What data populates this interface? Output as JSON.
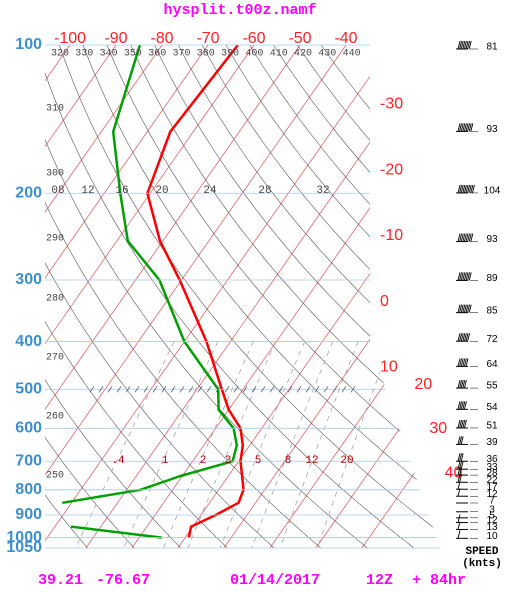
{
  "chart_data": {
    "type": "skewt",
    "title": "hysplit.t00z.namf",
    "footer": [
      "39.21",
      "-76.67",
      "01/14/2017",
      "12Z",
      "+ 84hr"
    ],
    "log_y": true,
    "ylim": [
      1050,
      100
    ],
    "yticks": [
      100,
      200,
      300,
      400,
      500,
      600,
      700,
      800,
      900,
      1000,
      1050
    ],
    "xlim": [
      -100,
      -40
    ],
    "xticks": [
      -100,
      -90,
      -80,
      -70,
      -60,
      -50,
      -40
    ],
    "isotherm_labels": [
      -30,
      -20,
      -10,
      0,
      10,
      20,
      30,
      40
    ],
    "theta_top": [
      320,
      330,
      340,
      350,
      360,
      370,
      380,
      390,
      400,
      410,
      420,
      430,
      440
    ],
    "theta_left": [
      310,
      300,
      290,
      280,
      270,
      260,
      250
    ],
    "mixing_ratio_upper": [
      {
        "value": 8,
        "label": "08"
      },
      12,
      16,
      20,
      24,
      28,
      32
    ],
    "mixing_ratio_lower": [
      {
        "value": 0.4,
        "label": ".4"
      },
      1,
      2,
      3,
      5,
      8,
      12,
      20
    ],
    "pressure_levels": [
      100,
      150,
      200,
      250,
      300,
      400,
      500,
      550,
      600,
      650,
      700,
      750,
      800,
      850,
      900,
      950,
      1000
    ],
    "series": [
      {
        "color": "#ff0000",
        "values": [
          -63.5,
          -65,
          -60.6,
          -50.6,
          -40.4,
          -25.2,
          -14.6,
          -10,
          -4.6,
          -1.5,
          0.4,
          3,
          5.4,
          6.3,
          3.2,
          -0.4,
          0.8
        ]
      },
      {
        "color": "#00a000",
        "values": [
          -84.8,
          -77.4,
          -66.5,
          -57.6,
          -44.8,
          -30,
          -15.4,
          -12.2,
          -6.1,
          -2.8,
          -1.3,
          -10.4,
          -17,
          -32,
          null,
          -26.5,
          -5.1
        ]
      }
    ],
    "wind": {
      "label": "SPEED",
      "units": "(knts)",
      "pressures": [
        100,
        147,
        196,
        246,
        295,
        343,
        392,
        441,
        488,
        539,
        588,
        635,
        687,
        713,
        733,
        758,
        783,
        809,
        835,
        870,
        895,
        915,
        945,
        985
      ],
      "speeds": [
        81,
        93,
        104,
        93,
        89,
        85,
        72,
        64,
        55,
        54,
        51,
        39,
        36,
        33,
        28,
        22,
        17,
        12,
        7,
        3,
        5,
        12,
        13,
        10
      ]
    }
  }
}
